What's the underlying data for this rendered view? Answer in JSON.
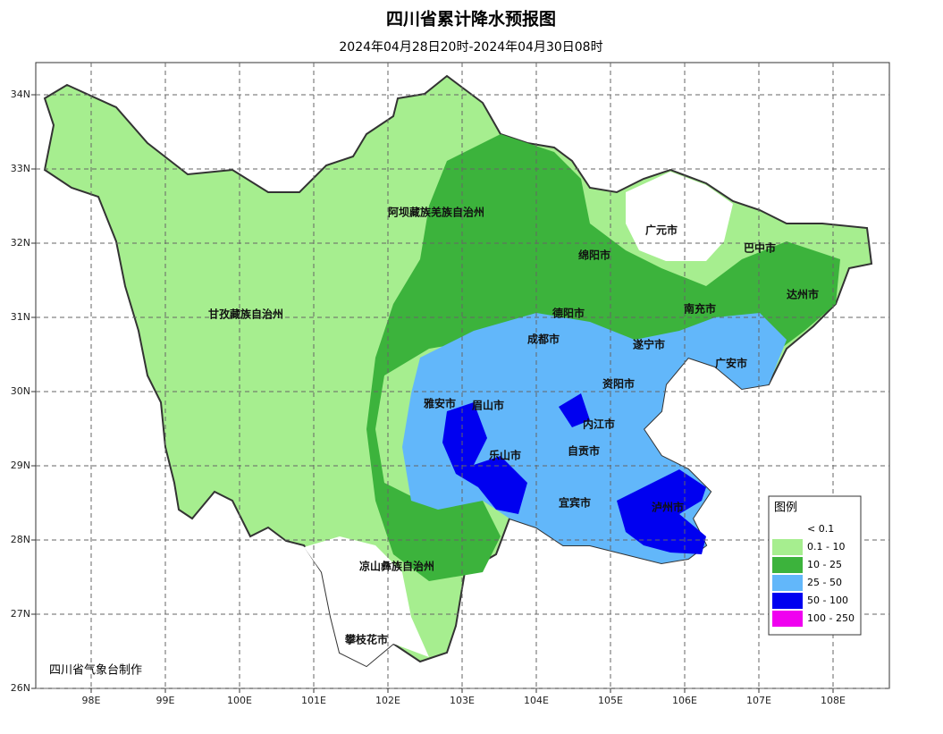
{
  "map": {
    "title": "四川省累计降水预报图",
    "subtitle": "2024年04月28日20时-2024年04月30日08时",
    "credit": "四川省气象台制作",
    "xticks": [
      {
        "value": 98,
        "label": "98E"
      },
      {
        "value": 99,
        "label": "99E"
      },
      {
        "value": 100,
        "label": "100E"
      },
      {
        "value": 101,
        "label": "101E"
      },
      {
        "value": 102,
        "label": "102E"
      },
      {
        "value": 103,
        "label": "103E"
      },
      {
        "value": 104,
        "label": "104E"
      },
      {
        "value": 105,
        "label": "105E"
      },
      {
        "value": 106,
        "label": "106E"
      },
      {
        "value": 107,
        "label": "107E"
      },
      {
        "value": 108,
        "label": "108E"
      }
    ],
    "yticks": [
      {
        "value": 34,
        "label": "34N"
      },
      {
        "value": 33,
        "label": "33N"
      },
      {
        "value": 32,
        "label": "32N"
      },
      {
        "value": 31,
        "label": "31N"
      },
      {
        "value": 30,
        "label": "30N"
      },
      {
        "value": 29,
        "label": "29N"
      },
      {
        "value": 28,
        "label": "28N"
      },
      {
        "value": 27,
        "label": "27N"
      },
      {
        "value": 26,
        "label": "26N"
      }
    ],
    "legend": {
      "title": "图例",
      "items": [
        {
          "label": "< 0.1",
          "color": "#ffffff"
        },
        {
          "label": "0.1 - 10",
          "color": "#a6ee8f"
        },
        {
          "label": "10 - 25",
          "color": "#3cb33c"
        },
        {
          "label": "25 - 50",
          "color": "#62b7fa"
        },
        {
          "label": "50 - 100",
          "color": "#0000f0"
        },
        {
          "label": "100 - 250",
          "color": "#f000f0"
        }
      ]
    },
    "cities": [
      "阿坝藏族羌族自治州",
      "甘孜藏族自治州",
      "凉山彝族自治州",
      "攀枝花市",
      "成都市",
      "德阳市",
      "绵阳市",
      "广元市",
      "巴中市",
      "达州市",
      "南充市",
      "遂宁市",
      "广安市",
      "资阳市",
      "眉山市",
      "雅安市",
      "乐山市",
      "内江市",
      "自贡市",
      "宜宾市",
      "泸州市"
    ]
  }
}
